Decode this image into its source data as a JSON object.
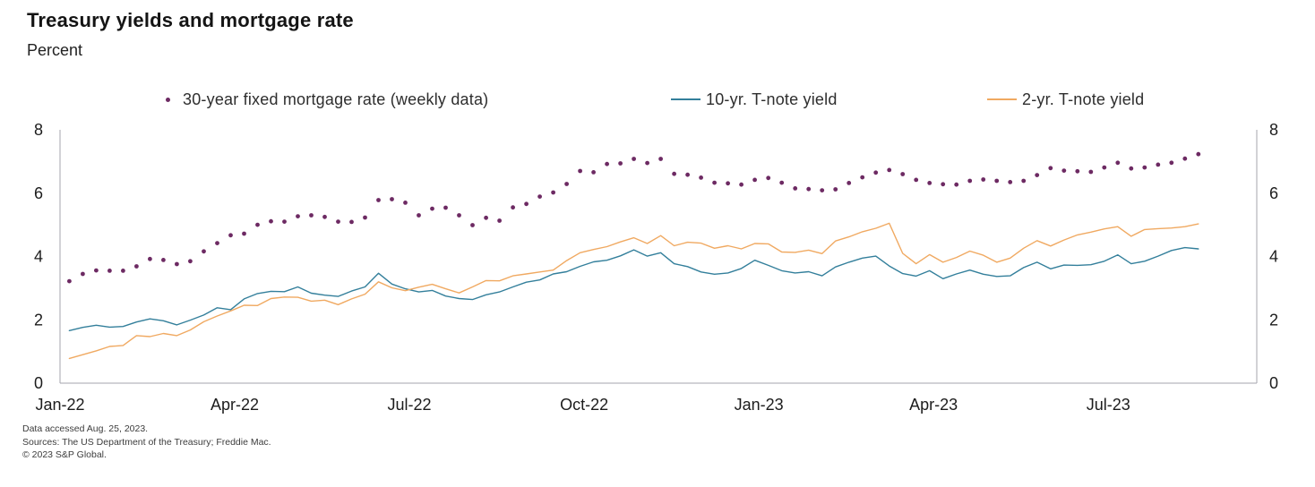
{
  "title": "Treasury yields and mortgage rate",
  "subtitle": "Percent",
  "legend": {
    "items": [
      {
        "label": "30-year fixed mortgage rate (weekly data)",
        "marker": "dot",
        "color": "#6d2a63"
      },
      {
        "label": "10-yr. T-note yield",
        "marker": "line",
        "color": "#337f9b"
      },
      {
        "label": "2-yr. T-note yield",
        "marker": "line",
        "color": "#f0a961"
      }
    ]
  },
  "footer": {
    "line1": "Data accessed Aug. 25, 2023.",
    "line2": "Sources: The US Department of the Treasury; Freddie Mac.",
    "line3": "© 2023 S&P Global."
  },
  "chart_data": {
    "type": "line",
    "title": "Treasury yields and mortgage rate",
    "ylabel": "Percent",
    "grid": false,
    "legend_position": "top",
    "ylim": [
      0,
      8
    ],
    "y_ticks": [
      0,
      2,
      4,
      6,
      8
    ],
    "y_axis_sides": [
      "left",
      "right"
    ],
    "xlim_months": [
      0,
      20.55
    ],
    "x_ticks": [
      {
        "month": 0,
        "label": "Jan-22"
      },
      {
        "month": 3,
        "label": "Apr-22"
      },
      {
        "month": 6,
        "label": "Jul-22"
      },
      {
        "month": 9,
        "label": "Oct-22"
      },
      {
        "month": 12,
        "label": "Jan-23"
      },
      {
        "month": 15,
        "label": "Apr-23"
      },
      {
        "month": 18,
        "label": "Jul-23"
      }
    ],
    "x_unit": "months since Jan-2022, weekly samples",
    "x_start_month": 0.16,
    "x_step_month": 0.2308,
    "axis_color": "#a6a6ae",
    "series": [
      {
        "name": "30-year fixed mortgage rate (weekly data)",
        "style": "scatter",
        "color": "#6d2a63",
        "values": [
          3.22,
          3.45,
          3.56,
          3.55,
          3.55,
          3.69,
          3.92,
          3.89,
          3.76,
          3.85,
          4.16,
          4.42,
          4.67,
          4.72,
          5.0,
          5.11,
          5.1,
          5.27,
          5.3,
          5.25,
          5.1,
          5.09,
          5.23,
          5.78,
          5.81,
          5.7,
          5.3,
          5.51,
          5.54,
          5.3,
          4.99,
          5.22,
          5.13,
          5.55,
          5.66,
          5.89,
          6.02,
          6.29,
          6.7,
          6.66,
          6.92,
          6.94,
          7.08,
          6.95,
          7.08,
          6.61,
          6.58,
          6.49,
          6.33,
          6.31,
          6.27,
          6.42,
          6.48,
          6.33,
          6.15,
          6.13,
          6.09,
          6.12,
          6.32,
          6.5,
          6.65,
          6.73,
          6.6,
          6.42,
          6.32,
          6.28,
          6.27,
          6.39,
          6.43,
          6.39,
          6.35,
          6.39,
          6.57,
          6.79,
          6.71,
          6.69,
          6.67,
          6.81,
          6.96,
          6.78,
          6.81,
          6.9,
          6.96,
          7.09,
          7.23
        ]
      },
      {
        "name": "10-yr. T-note yield",
        "style": "line",
        "color": "#337f9b",
        "values": [
          1.66,
          1.76,
          1.83,
          1.77,
          1.79,
          1.93,
          2.03,
          1.97,
          1.84,
          1.99,
          2.15,
          2.38,
          2.32,
          2.66,
          2.83,
          2.9,
          2.89,
          3.04,
          2.84,
          2.78,
          2.74,
          2.91,
          3.04,
          3.47,
          3.13,
          2.98,
          2.88,
          2.93,
          2.75,
          2.67,
          2.64,
          2.79,
          2.88,
          3.04,
          3.19,
          3.26,
          3.45,
          3.52,
          3.69,
          3.83,
          3.88,
          4.02,
          4.21,
          4.01,
          4.12,
          3.77,
          3.68,
          3.51,
          3.44,
          3.48,
          3.62,
          3.88,
          3.72,
          3.55,
          3.48,
          3.52,
          3.39,
          3.67,
          3.82,
          3.95,
          4.01,
          3.7,
          3.46,
          3.38,
          3.55,
          3.3,
          3.45,
          3.57,
          3.44,
          3.37,
          3.39,
          3.65,
          3.82,
          3.61,
          3.73,
          3.72,
          3.74,
          3.85,
          4.05,
          3.77,
          3.85,
          4.01,
          4.19,
          4.28,
          4.24
        ]
      },
      {
        "name": "2-yr. T-note yield",
        "style": "line",
        "color": "#f0a961",
        "values": [
          0.78,
          0.9,
          1.02,
          1.16,
          1.19,
          1.5,
          1.47,
          1.57,
          1.5,
          1.68,
          1.94,
          2.12,
          2.28,
          2.46,
          2.45,
          2.67,
          2.72,
          2.71,
          2.59,
          2.62,
          2.48,
          2.66,
          2.81,
          3.2,
          3.01,
          2.92,
          3.03,
          3.12,
          2.98,
          2.85,
          3.04,
          3.24,
          3.23,
          3.39,
          3.45,
          3.51,
          3.57,
          3.87,
          4.12,
          4.22,
          4.31,
          4.46,
          4.59,
          4.41,
          4.66,
          4.34,
          4.45,
          4.42,
          4.26,
          4.34,
          4.24,
          4.41,
          4.4,
          4.14,
          4.13,
          4.2,
          4.09,
          4.49,
          4.62,
          4.78,
          4.89,
          5.05,
          4.1,
          3.77,
          4.06,
          3.82,
          3.97,
          4.17,
          4.04,
          3.82,
          3.95,
          4.26,
          4.5,
          4.33,
          4.52,
          4.68,
          4.77,
          4.87,
          4.94,
          4.64,
          4.85,
          4.88,
          4.9,
          4.94,
          5.03
        ]
      }
    ]
  }
}
